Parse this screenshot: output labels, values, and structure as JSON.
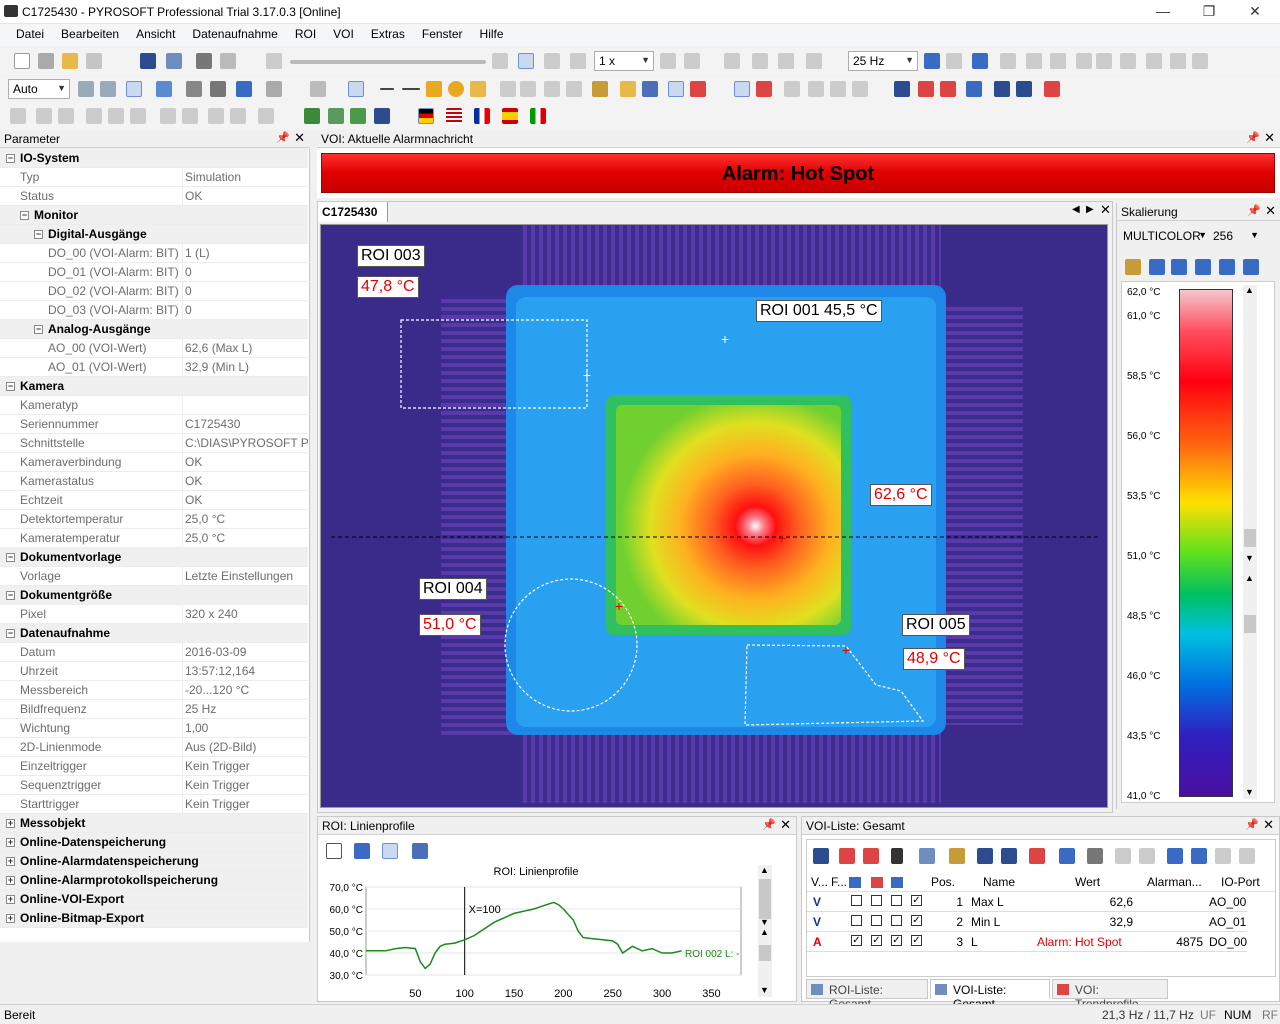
{
  "window": {
    "title": "C1725430 - PYROSOFT Professional Trial 3.17.0.3  [Online]",
    "minimize": "—",
    "maximize": "❐",
    "close": "✕"
  },
  "menu": [
    "Datei",
    "Bearbeiten",
    "Ansicht",
    "Datenaufnahme",
    "ROI",
    "VOI",
    "Extras",
    "Fenster",
    "Hilfe"
  ],
  "toolbar": {
    "speed": "1 x",
    "framerate": "25 Hz",
    "zoom_mode": "Auto"
  },
  "parameter_panel": {
    "title": "Parameter",
    "rows": [
      {
        "type": "cat",
        "level": 0,
        "label": "IO-System"
      },
      {
        "type": "prop",
        "level": 1,
        "label": "Typ",
        "value": "Simulation"
      },
      {
        "type": "prop",
        "level": 1,
        "label": "Status",
        "value": "OK"
      },
      {
        "type": "cat",
        "level": 1,
        "label": "Monitor"
      },
      {
        "type": "cat",
        "level": 2,
        "label": "Digital-Ausgänge"
      },
      {
        "type": "prop",
        "level": 3,
        "label": "DO_00 (VOI-Alarm: BIT)",
        "value": "1 (L)"
      },
      {
        "type": "prop",
        "level": 3,
        "label": "DO_01 (VOI-Alarm: BIT)",
        "value": "0"
      },
      {
        "type": "prop",
        "level": 3,
        "label": "DO_02 (VOI-Alarm: BIT)",
        "value": "0"
      },
      {
        "type": "prop",
        "level": 3,
        "label": "DO_03 (VOI-Alarm: BIT)",
        "value": "0"
      },
      {
        "type": "cat",
        "level": 2,
        "label": "Analog-Ausgänge"
      },
      {
        "type": "prop",
        "level": 3,
        "label": "AO_00 (VOI-Wert)",
        "value": "62,6 (Max L)"
      },
      {
        "type": "prop",
        "level": 3,
        "label": "AO_01 (VOI-Wert)",
        "value": "32,9 (Min L)"
      },
      {
        "type": "cat",
        "level": 0,
        "label": "Kamera"
      },
      {
        "type": "prop",
        "level": 1,
        "label": "Kameratyp",
        "value": ""
      },
      {
        "type": "prop",
        "level": 1,
        "label": "Seriennummer",
        "value": "C1725430"
      },
      {
        "type": "prop",
        "level": 1,
        "label": "Schnittstelle",
        "value": "C:\\DIAS\\PYROSOFT Pro"
      },
      {
        "type": "prop",
        "level": 1,
        "label": "Kameraverbindung",
        "value": "OK"
      },
      {
        "type": "prop",
        "level": 1,
        "label": "Kamerastatus",
        "value": "OK"
      },
      {
        "type": "prop",
        "level": 1,
        "label": "Echtzeit",
        "value": "OK"
      },
      {
        "type": "prop",
        "level": 1,
        "label": "Detektortemperatur",
        "value": "25,0 °C"
      },
      {
        "type": "prop",
        "level": 1,
        "label": "Kameratemperatur",
        "value": "25,0 °C"
      },
      {
        "type": "cat",
        "level": 0,
        "label": "Dokumentvorlage"
      },
      {
        "type": "prop",
        "level": 1,
        "label": "Vorlage",
        "value": "Letzte Einstellungen"
      },
      {
        "type": "cat",
        "level": 0,
        "label": "Dokumentgröße"
      },
      {
        "type": "prop",
        "level": 1,
        "label": "Pixel",
        "value": "320 x 240"
      },
      {
        "type": "cat",
        "level": 0,
        "label": "Datenaufnahme"
      },
      {
        "type": "prop",
        "level": 1,
        "label": "Datum",
        "value": "2016-03-09"
      },
      {
        "type": "prop",
        "level": 1,
        "label": "Uhrzeit",
        "value": "13:57:12,164"
      },
      {
        "type": "prop",
        "level": 1,
        "label": "Messbereich",
        "value": "-20...120 °C"
      },
      {
        "type": "prop",
        "level": 1,
        "label": "Bildfrequenz",
        "value": "25 Hz"
      },
      {
        "type": "prop",
        "level": 1,
        "label": "Wichtung",
        "value": "1,00"
      },
      {
        "type": "prop",
        "level": 1,
        "label": "2D-Linienmode",
        "value": "Aus (2D-Bild)"
      },
      {
        "type": "prop",
        "level": 1,
        "label": "Einzeltrigger",
        "value": "Kein Trigger"
      },
      {
        "type": "prop",
        "level": 1,
        "label": "Sequenztrigger",
        "value": "Kein Trigger"
      },
      {
        "type": "prop",
        "level": 1,
        "label": "Starttrigger",
        "value": "Kein Trigger"
      },
      {
        "type": "cat",
        "level": 0,
        "label": "Messobjekt",
        "collapsed": true
      },
      {
        "type": "cat",
        "level": 0,
        "label": "Online-Datenspeicherung",
        "collapsed": true
      },
      {
        "type": "cat",
        "level": 0,
        "label": "Online-Alarmdatenspeicherung",
        "collapsed": true
      },
      {
        "type": "cat",
        "level": 0,
        "label": "Online-Alarmprotokollspeicherung",
        "collapsed": true
      },
      {
        "type": "cat",
        "level": 0,
        "label": "Online-VOI-Export",
        "collapsed": true
      },
      {
        "type": "cat",
        "level": 0,
        "label": "Online-Bitmap-Export",
        "collapsed": true
      }
    ]
  },
  "alarm_panel": {
    "title": "VOI: Aktuelle Alarmnachricht",
    "message": "Alarm: Hot Spot",
    "color": "#ff0000"
  },
  "image_doc": {
    "tab": "C1725430",
    "labels": {
      "roi003": "ROI 003",
      "roi003_val": "47,8 °C",
      "roi001": "ROI 001 45,5 °C",
      "hot": "62,6 °C",
      "roi004": "ROI 004",
      "roi004_val": "51,0 °C",
      "roi005": "ROI 005",
      "roi005_val": "48,9 °C"
    }
  },
  "scale_panel": {
    "title": "Skalierung",
    "palette": "MULTICOLOR",
    "levels": "256",
    "ticks": [
      "62,0 °C",
      "61,0 °C",
      "58,5 °C",
      "56,0 °C",
      "53,5 °C",
      "51,0 °C",
      "48,5 °C",
      "46,0 °C",
      "43,5 °C",
      "41,0 °C"
    ]
  },
  "line_profile": {
    "title": "ROI: Linienprofile",
    "chart_title": "ROI: Linienprofile",
    "cursor_label": "X=100",
    "legend": "ROI 002 L: -",
    "yticks": [
      "70,0 °C",
      "60,0 °C",
      "50,0 °C",
      "40,0 °C",
      "30,0 °C"
    ],
    "xticks": [
      "50",
      "100",
      "150",
      "200",
      "250",
      "300",
      "350"
    ]
  },
  "chart_data": {
    "type": "line",
    "title": "ROI: Linienprofile",
    "xlabel": "",
    "ylabel": "",
    "xlim": [
      0,
      380
    ],
    "ylim": [
      30,
      70
    ],
    "yunit": "°C",
    "cursor_x": 100,
    "series": [
      {
        "name": "ROI 002 L: -",
        "color": "#1a8a1a",
        "x": [
          0,
          20,
          30,
          40,
          50,
          55,
          60,
          65,
          70,
          75,
          80,
          90,
          100,
          110,
          120,
          130,
          140,
          150,
          160,
          170,
          180,
          190,
          195,
          200,
          210,
          215,
          220,
          230,
          240,
          250,
          255,
          260,
          270,
          280,
          290,
          300,
          310,
          320
        ],
        "y": [
          41,
          41,
          42,
          42.5,
          42,
          36,
          33,
          35,
          40,
          43,
          44,
          44.5,
          46,
          48,
          51,
          54,
          56,
          58,
          59,
          60,
          61.5,
          63,
          62,
          60,
          55,
          50,
          47,
          46.5,
          46,
          45.5,
          44,
          40,
          43,
          41,
          42,
          40,
          40,
          41
        ]
      }
    ]
  },
  "voi_list": {
    "title": "VOI-Liste: Gesamt",
    "columns": [
      "V...",
      "F...",
      "Pos.",
      "Name",
      "Wert",
      "Alarman...",
      "IO-Port"
    ],
    "rows": [
      {
        "mode": "V",
        "pos": "1",
        "name": "Max L",
        "value": "62,6",
        "alarm": "",
        "count": "",
        "io": "AO_00",
        "checks": [
          false,
          false,
          false,
          true
        ]
      },
      {
        "mode": "V",
        "pos": "2",
        "name": "Min L",
        "value": "32,9",
        "alarm": "",
        "count": "",
        "io": "AO_01",
        "checks": [
          false,
          false,
          false,
          true
        ]
      },
      {
        "mode": "A",
        "pos": "3",
        "name": "L",
        "value": "",
        "alarm": "Alarm: Hot Spot",
        "count": "4875",
        "io": "DO_00",
        "checks": [
          true,
          true,
          true,
          true
        ]
      }
    ],
    "tabs": [
      "ROI-Liste: Gesamt",
      "VOI-Liste: Gesamt",
      "VOI: Trendprofile"
    ]
  },
  "statusbar": {
    "left": "Bereit",
    "rate": "21,3 Hz / 11,7 Hz",
    "uf": "UF",
    "num": "NUM",
    "rf": "RF"
  }
}
